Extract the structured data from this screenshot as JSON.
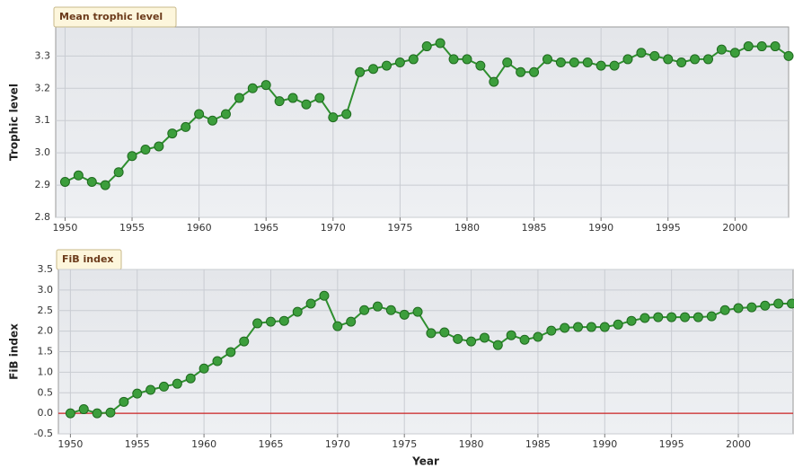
{
  "chart_data": [
    {
      "type": "line",
      "title": "Mean trophic level",
      "ylabel": "Trophic level",
      "color": "#2f8f2f",
      "marker_color": "#3c9e3c",
      "grid": true,
      "x": [
        1950,
        1951,
        1952,
        1953,
        1954,
        1955,
        1956,
        1957,
        1958,
        1959,
        1960,
        1961,
        1962,
        1963,
        1964,
        1965,
        1966,
        1967,
        1968,
        1969,
        1970,
        1971,
        1972,
        1973,
        1974,
        1975,
        1976,
        1977,
        1978,
        1979,
        1980,
        1981,
        1982,
        1983,
        1984,
        1985,
        1986,
        1987,
        1988,
        1989,
        1990,
        1991,
        1992,
        1993,
        1994,
        1995,
        1996,
        1997,
        1998,
        1999,
        2000,
        2001,
        2002,
        2003,
        2004
      ],
      "values": [
        2.91,
        2.93,
        2.91,
        2.9,
        2.94,
        2.99,
        3.01,
        3.02,
        3.06,
        3.08,
        3.12,
        3.1,
        3.12,
        3.17,
        3.2,
        3.21,
        3.16,
        3.17,
        3.15,
        3.17,
        3.11,
        3.12,
        3.25,
        3.26,
        3.27,
        3.28,
        3.29,
        3.33,
        3.34,
        3.29,
        3.29,
        3.27,
        3.22,
        3.28,
        3.25,
        3.25,
        3.29,
        3.28,
        3.28,
        3.28,
        3.27,
        3.27,
        3.29,
        3.31,
        3.3,
        3.29,
        3.28,
        3.29,
        3.29,
        3.32,
        3.31,
        3.33,
        3.33,
        3.33,
        3.3
      ],
      "xlim": [
        1949.3,
        2004
      ],
      "xticks": [
        1950,
        1955,
        1960,
        1965,
        1970,
        1975,
        1980,
        1985,
        1990,
        1995,
        2000
      ],
      "ylim": [
        2.8,
        3.39
      ],
      "yticks": [
        2.8,
        2.9,
        {
          "value": 3,
          "label": "3.0"
        },
        3.1,
        3.2,
        3.3
      ]
    },
    {
      "type": "line",
      "title": "FiB index",
      "ylabel": "FiB index",
      "xlabel": "Year",
      "color": "#2f8f2f",
      "marker_color": "#3c9e3c",
      "grid": true,
      "hline": 0,
      "hline_color": "#cc2222",
      "x": [
        1950,
        1951,
        1952,
        1953,
        1954,
        1955,
        1956,
        1957,
        1958,
        1959,
        1960,
        1961,
        1962,
        1963,
        1964,
        1965,
        1966,
        1967,
        1968,
        1969,
        1970,
        1971,
        1972,
        1973,
        1974,
        1975,
        1976,
        1977,
        1978,
        1979,
        1980,
        1981,
        1982,
        1983,
        1984,
        1985,
        1986,
        1987,
        1988,
        1989,
        1990,
        1991,
        1992,
        1993,
        1994,
        1995,
        1996,
        1997,
        1998,
        1999,
        2000,
        2001,
        2002,
        2003,
        2004
      ],
      "values": [
        0,
        0.1,
        0,
        0.02,
        0.28,
        0.48,
        0.57,
        0.65,
        0.72,
        0.85,
        1.09,
        1.27,
        1.49,
        1.75,
        2.19,
        2.23,
        2.25,
        2.47,
        2.67,
        2.86,
        2.12,
        2.23,
        2.51,
        2.6,
        2.51,
        2.4,
        2.47,
        1.95,
        1.97,
        1.81,
        1.75,
        1.84,
        1.66,
        1.9,
        1.79,
        1.86,
        2.01,
        2.08,
        2.1,
        2.1,
        2.1,
        2.16,
        2.25,
        2.32,
        2.34,
        2.34,
        2.34,
        2.34,
        2.36,
        2.51,
        2.56,
        2.58,
        2.62,
        2.67,
        2.67
      ],
      "xlim": [
        1949.1,
        2004.1
      ],
      "xticks": [
        1950,
        1955,
        1960,
        1965,
        1970,
        1975,
        1980,
        1985,
        1990,
        1995,
        2000
      ],
      "ylim": [
        -0.5,
        3.5
      ],
      "yticks": [
        -0.5,
        {
          "value": 0,
          "label": "0.0"
        },
        0.5,
        {
          "value": 1,
          "label": "1.0"
        },
        1.5,
        {
          "value": 2,
          "label": "2.0"
        },
        2.5,
        {
          "value": 3,
          "label": "3.0"
        },
        3.5
      ]
    }
  ]
}
